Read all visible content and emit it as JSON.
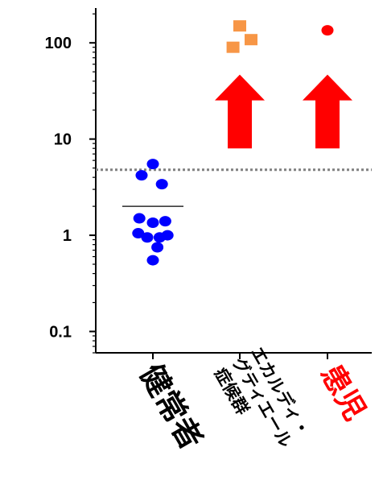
{
  "chart_data": {
    "type": "scatter",
    "yscale": "log",
    "ylim": [
      0.06,
      230
    ],
    "yticks": [
      {
        "value": 0.1,
        "label": "0.1"
      },
      {
        "value": 1,
        "label": "1"
      },
      {
        "value": 10,
        "label": "10"
      },
      {
        "value": 100,
        "label": "100"
      }
    ],
    "categories": [
      "健常者",
      "エカルディ・グティエール症候群",
      "患児"
    ],
    "category_lines": [
      [
        "健常者"
      ],
      [
        "エカルディ・",
        "グティエール",
        "症候群"
      ],
      [
        "患児"
      ]
    ],
    "category_colors": [
      "#000000",
      "#000000",
      "#ff0000"
    ],
    "threshold": {
      "value": 4.8,
      "color": "#808080",
      "style": "dotted"
    },
    "series": [
      {
        "category": "健常者",
        "marker": "circle",
        "color": "#0000ff",
        "points": [
          {
            "offset": 0.0,
            "y": 5.5
          },
          {
            "offset": -0.5,
            "y": 4.2
          },
          {
            "offset": 0.4,
            "y": 3.4
          },
          {
            "offset": -0.6,
            "y": 1.5
          },
          {
            "offset": 0.0,
            "y": 1.35
          },
          {
            "offset": 0.55,
            "y": 1.4
          },
          {
            "offset": -0.65,
            "y": 1.05
          },
          {
            "offset": -0.25,
            "y": 0.95
          },
          {
            "offset": 0.3,
            "y": 0.95
          },
          {
            "offset": 0.65,
            "y": 1.0
          },
          {
            "offset": 0.2,
            "y": 0.75
          },
          {
            "offset": 0.0,
            "y": 0.55
          }
        ],
        "mean": 2.0
      },
      {
        "category": "エカルディ・グティエール症候群",
        "marker": "square",
        "color": "#f79646",
        "points": [
          {
            "offset": 0.0,
            "y": 150
          },
          {
            "offset": 0.5,
            "y": 108
          },
          {
            "offset": -0.3,
            "y": 90
          }
        ]
      },
      {
        "category": "患児",
        "marker": "circle",
        "color": "#ff0000",
        "points": [
          {
            "offset": 0.0,
            "y": 135
          }
        ]
      }
    ],
    "arrows": [
      {
        "category": "エカルディ・グティエール症候群",
        "color": "#ff0000",
        "from": 8,
        "to": 45
      },
      {
        "category": "患児",
        "color": "#ff0000",
        "from": 8,
        "to": 45
      }
    ]
  }
}
